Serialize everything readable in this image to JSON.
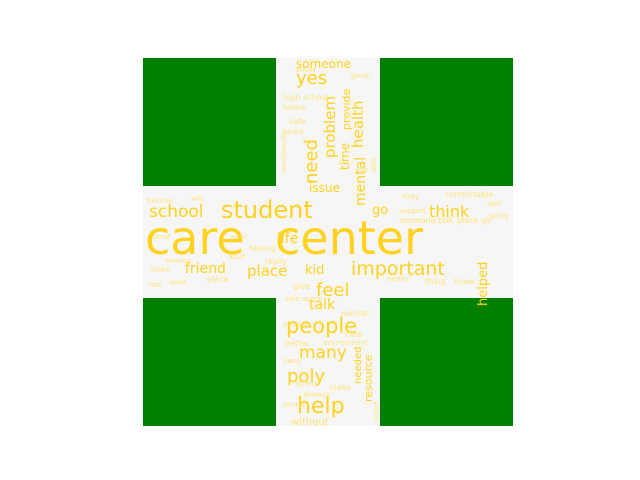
{
  "figure": {
    "background": "#ffffff",
    "panel_color": "#008000",
    "cross_color": "#f6f6f6",
    "word_color": "#ffd21f"
  },
  "words": {
    "w01": "care",
    "w02": "center",
    "w03": "student",
    "w04": "important",
    "w05": "people",
    "w06": "help",
    "w07": "poly",
    "w08": "many",
    "w09": "feel",
    "w10": "school",
    "w11": "think",
    "w12": "place",
    "w13": "friend",
    "w14": "life",
    "w15": "need",
    "w16": "yes",
    "w17": "someone",
    "w18": "problem",
    "w19": "mental",
    "w20": "health",
    "w21": "talk",
    "w22": "kid",
    "w23": "helped",
    "w24": "go",
    "w25": "issue",
    "w26": "resource",
    "w27": "needed",
    "w28": "time",
    "w29": "provide",
    "w30": "high school",
    "w31": "allow",
    "w32": "great",
    "w33": "safe",
    "w34": "able",
    "w35": "home",
    "w36": "heard",
    "w37": "emotionally",
    "w38": "one",
    "w39": "may",
    "w40": "comfortable",
    "w41": "support",
    "w42": "believe",
    "w43": "will",
    "w44": "good",
    "w45": "lives",
    "w46": "really",
    "w47": "feeling",
    "w48": "adult",
    "w49": "give",
    "w50": "thing",
    "w51": "know",
    "w52": "family",
    "w53": "someone talk",
    "w54": "going",
    "w55": "well",
    "w56": "place go",
    "w57": "safe space",
    "w58": "suicide",
    "w59": "better",
    "w60": "care",
    "w61": "environment",
    "w62": "stress",
    "w63": "make",
    "w64": "always",
    "w65": "without",
    "w66": "scope",
    "w67": "anxiety",
    "w68": "lost",
    "w69": "speak",
    "w70": "peer",
    "w71": "away",
    "w72": "center"
  }
}
